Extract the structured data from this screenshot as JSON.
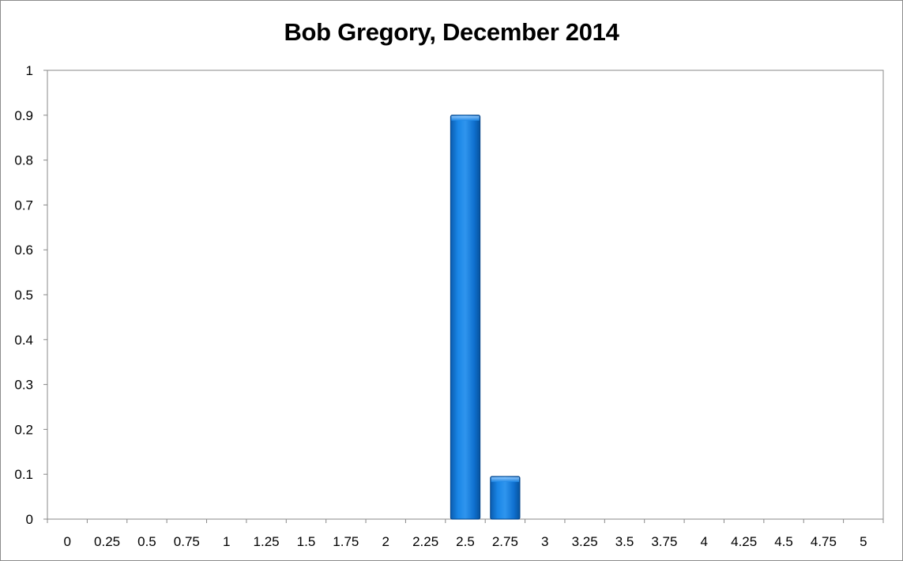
{
  "chart_data": {
    "type": "bar",
    "title": "Bob Gregory, December 2014",
    "xlabel": "",
    "ylabel": "",
    "categories": [
      "0",
      "0.25",
      "0.5",
      "0.75",
      "1",
      "1.25",
      "1.5",
      "1.75",
      "2",
      "2.25",
      "2.5",
      "2.75",
      "3",
      "3.25",
      "3.5",
      "3.75",
      "4",
      "4.25",
      "4.5",
      "4.75",
      "5"
    ],
    "values": [
      0,
      0,
      0,
      0,
      0,
      0,
      0,
      0,
      0,
      0,
      0.9,
      0.095,
      0,
      0,
      0,
      0,
      0,
      0,
      0,
      0,
      0
    ],
    "y_ticks": [
      "0",
      "0.1",
      "0.2",
      "0.3",
      "0.4",
      "0.5",
      "0.6",
      "0.7",
      "0.8",
      "0.9",
      "1"
    ],
    "ylim": [
      0,
      1
    ],
    "grid": false,
    "legend": "none",
    "bar_color": "#0a6ccf"
  }
}
